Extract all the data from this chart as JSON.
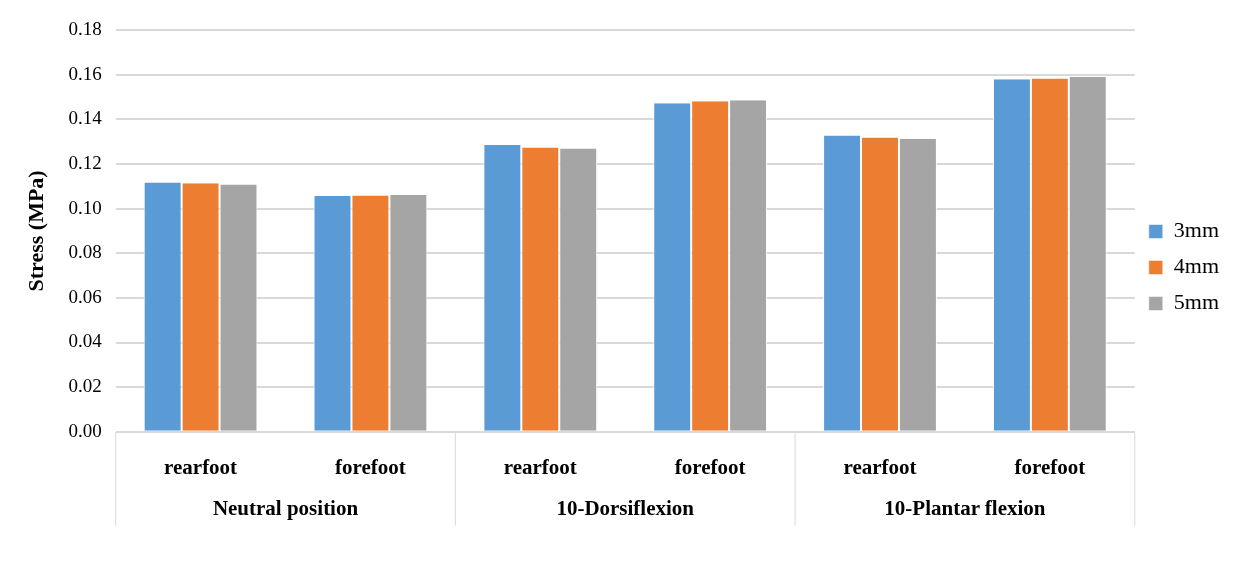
{
  "chart_data": {
    "type": "bar",
    "ylabel": "Stress (MPa)",
    "categories": [
      "rearfoot",
      "forefoot",
      "rearfoot",
      "forefoot",
      "rearfoot",
      "forefoot"
    ],
    "annotations": [
      "Neutral position",
      "10-Dorsiflexion",
      "10-Plantar flexion"
    ],
    "series": [
      {
        "name": "3mm",
        "color": "#5b9bd5",
        "values": [
          0.1117,
          0.1056,
          0.1285,
          0.1472,
          0.1327,
          0.1579
        ]
      },
      {
        "name": "4mm",
        "color": "#ed7d31",
        "values": [
          0.1113,
          0.1059,
          0.1274,
          0.1481,
          0.1318,
          0.1583
        ]
      },
      {
        "name": "5mm",
        "color": "#a5a5a5",
        "values": [
          0.1108,
          0.1061,
          0.1269,
          0.1485,
          0.1313,
          0.1589
        ]
      }
    ],
    "ylim": [
      0,
      0.18
    ],
    "yticks": [
      {
        "value": 0,
        "label": "0.00"
      },
      {
        "value": 0.02,
        "label": "0.02"
      },
      {
        "value": 0.04,
        "label": "0.04"
      },
      {
        "value": 0.06,
        "label": "0.06"
      },
      {
        "value": 0.08,
        "label": "0.08"
      },
      {
        "value": 0.1,
        "label": "0.10"
      },
      {
        "value": 0.12,
        "label": "0.12"
      },
      {
        "value": 0.14,
        "label": "0.14"
      },
      {
        "value": 0.16,
        "label": "0.16"
      },
      {
        "value": 0.18,
        "label": "0.18"
      }
    ],
    "grid": "y",
    "legend": "right"
  }
}
